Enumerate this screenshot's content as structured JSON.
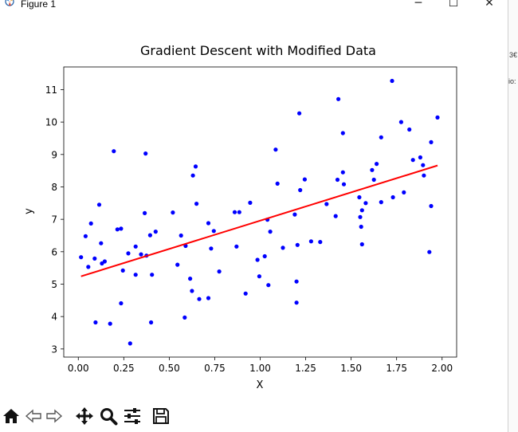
{
  "window": {
    "title": "Figure 1",
    "controls": {
      "minimize": "─",
      "maximize": "☐",
      "close": "✕"
    }
  },
  "side_fragment": {
    "text1": "3€",
    "text2": "io:"
  },
  "toolbar": {
    "buttons": [
      {
        "name": "home-button",
        "icon": "home-icon"
      },
      {
        "name": "back-button",
        "icon": "back-arrow-icon"
      },
      {
        "name": "forward-button",
        "icon": "forward-arrow-icon"
      },
      {
        "name": "pan-button",
        "icon": "move-icon"
      },
      {
        "name": "zoom-button",
        "icon": "zoom-icon"
      },
      {
        "name": "configure-subplots-button",
        "icon": "sliders-icon"
      },
      {
        "name": "save-button",
        "icon": "save-icon"
      }
    ]
  },
  "chart_data": {
    "type": "scatter",
    "title": "Gradient Descent with Modified Data",
    "xlabel": "X",
    "ylabel": "y",
    "xlim": [
      -0.08,
      2.08
    ],
    "ylim": [
      2.75,
      11.7
    ],
    "xticks": [
      "0.00",
      "0.25",
      "0.50",
      "0.75",
      "1.00",
      "1.25",
      "1.50",
      "1.75",
      "2.00"
    ],
    "xtick_values": [
      0,
      0.25,
      0.5,
      0.75,
      1.0,
      1.25,
      1.5,
      1.75,
      2.0
    ],
    "yticks": [
      "3",
      "4",
      "5",
      "6",
      "7",
      "8",
      "9",
      "10",
      "11"
    ],
    "ytick_values": [
      3,
      4,
      5,
      6,
      7,
      8,
      9,
      10,
      11
    ],
    "grid": false,
    "point_color": "#0000ff",
    "line_color": "#ff0000",
    "points": [
      [
        0.015,
        5.83
      ],
      [
        0.04,
        6.48
      ],
      [
        0.055,
        5.53
      ],
      [
        0.07,
        6.87
      ],
      [
        0.09,
        5.79
      ],
      [
        0.095,
        3.82
      ],
      [
        0.115,
        7.45
      ],
      [
        0.125,
        6.26
      ],
      [
        0.13,
        5.64
      ],
      [
        0.145,
        5.7
      ],
      [
        0.175,
        3.78
      ],
      [
        0.195,
        9.1
      ],
      [
        0.215,
        6.69
      ],
      [
        0.235,
        6.71
      ],
      [
        0.235,
        4.41
      ],
      [
        0.245,
        5.42
      ],
      [
        0.275,
        5.95
      ],
      [
        0.285,
        3.17
      ],
      [
        0.315,
        6.16
      ],
      [
        0.315,
        5.29
      ],
      [
        0.345,
        5.92
      ],
      [
        0.365,
        7.19
      ],
      [
        0.37,
        9.03
      ],
      [
        0.375,
        5.88
      ],
      [
        0.395,
        6.51
      ],
      [
        0.4,
        3.82
      ],
      [
        0.405,
        5.29
      ],
      [
        0.425,
        6.62
      ],
      [
        0.52,
        7.21
      ],
      [
        0.545,
        5.6
      ],
      [
        0.565,
        6.5
      ],
      [
        0.59,
        6.18
      ],
      [
        0.585,
        3.97
      ],
      [
        0.615,
        5.17
      ],
      [
        0.625,
        4.79
      ],
      [
        0.63,
        8.35
      ],
      [
        0.645,
        8.63
      ],
      [
        0.65,
        7.48
      ],
      [
        0.665,
        4.54
      ],
      [
        0.715,
        4.57
      ],
      [
        0.715,
        6.88
      ],
      [
        0.73,
        6.1
      ],
      [
        0.745,
        6.64
      ],
      [
        0.775,
        5.39
      ],
      [
        0.86,
        7.22
      ],
      [
        0.87,
        6.16
      ],
      [
        0.885,
        7.22
      ],
      [
        0.92,
        4.71
      ],
      [
        0.945,
        7.51
      ],
      [
        0.985,
        5.75
      ],
      [
        0.995,
        5.24
      ],
      [
        1.025,
        5.86
      ],
      [
        1.045,
        4.97
      ],
      [
        1.04,
        6.99
      ],
      [
        1.055,
        6.62
      ],
      [
        1.085,
        9.15
      ],
      [
        1.095,
        8.1
      ],
      [
        1.125,
        6.12
      ],
      [
        1.19,
        7.15
      ],
      [
        1.2,
        5.08
      ],
      [
        1.2,
        4.43
      ],
      [
        1.205,
        6.21
      ],
      [
        1.215,
        10.27
      ],
      [
        1.22,
        7.9
      ],
      [
        1.245,
        8.23
      ],
      [
        1.28,
        6.32
      ],
      [
        1.33,
        6.3
      ],
      [
        1.365,
        7.47
      ],
      [
        1.415,
        7.1
      ],
      [
        1.425,
        8.22
      ],
      [
        1.43,
        10.71
      ],
      [
        1.455,
        8.45
      ],
      [
        1.455,
        9.66
      ],
      [
        1.46,
        8.08
      ],
      [
        1.545,
        7.68
      ],
      [
        1.55,
        7.07
      ],
      [
        1.555,
        6.77
      ],
      [
        1.56,
        6.23
      ],
      [
        1.56,
        7.28
      ],
      [
        1.58,
        7.5
      ],
      [
        1.615,
        8.52
      ],
      [
        1.625,
        8.22
      ],
      [
        1.64,
        8.71
      ],
      [
        1.665,
        9.53
      ],
      [
        1.665,
        7.53
      ],
      [
        1.725,
        11.27
      ],
      [
        1.73,
        7.68
      ],
      [
        1.775,
        10.0
      ],
      [
        1.79,
        7.83
      ],
      [
        1.82,
        9.77
      ],
      [
        1.84,
        8.83
      ],
      [
        1.88,
        8.91
      ],
      [
        1.895,
        8.67
      ],
      [
        1.9,
        8.35
      ],
      [
        1.93,
        5.99
      ],
      [
        1.94,
        9.38
      ],
      [
        1.94,
        7.41
      ],
      [
        1.975,
        10.14
      ]
    ],
    "fit_line": [
      [
        0.015,
        5.24
      ],
      [
        1.975,
        8.66
      ]
    ]
  }
}
